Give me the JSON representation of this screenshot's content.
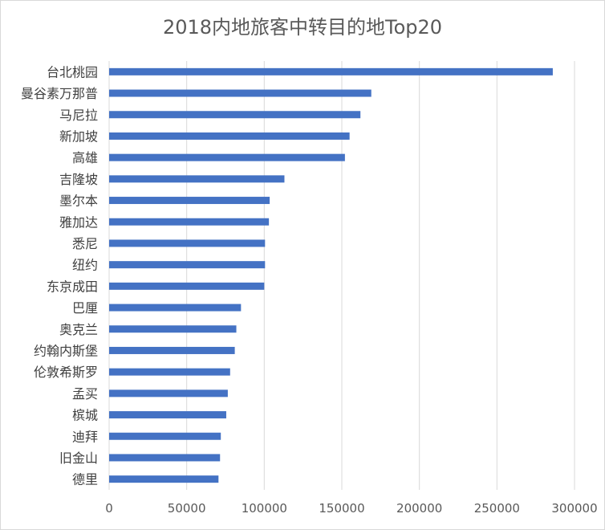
{
  "chart_data": {
    "type": "bar",
    "orientation": "horizontal",
    "title": "2018内地旅客中转目的地Top20",
    "categories": [
      "台北桃园",
      "曼谷素万那普",
      "马尼拉",
      "新加坡",
      "高雄",
      "吉隆坡",
      "墨尔本",
      "雅加达",
      "悉尼",
      "纽约",
      "东京成田",
      "巴厘",
      "奥克兰",
      "约翰内斯堡",
      "伦敦希斯罗",
      "孟买",
      "槟城",
      "迪拜",
      "旧金山",
      "德里"
    ],
    "values": [
      286000,
      169000,
      162000,
      155000,
      152000,
      113000,
      103500,
      103000,
      100500,
      100500,
      100000,
      85000,
      82000,
      81000,
      78000,
      76500,
      75500,
      72000,
      71500,
      70500
    ],
    "xlim": [
      0,
      300000
    ],
    "xticks": [
      0,
      50000,
      100000,
      150000,
      200000,
      250000,
      300000
    ],
    "xtick_labels": [
      "0",
      "50000",
      "100000",
      "150000",
      "200000",
      "250000",
      "300000"
    ],
    "bar_color": "#4472c4",
    "grid_color": "#d9d9d9",
    "grid": true,
    "legend": "none"
  }
}
